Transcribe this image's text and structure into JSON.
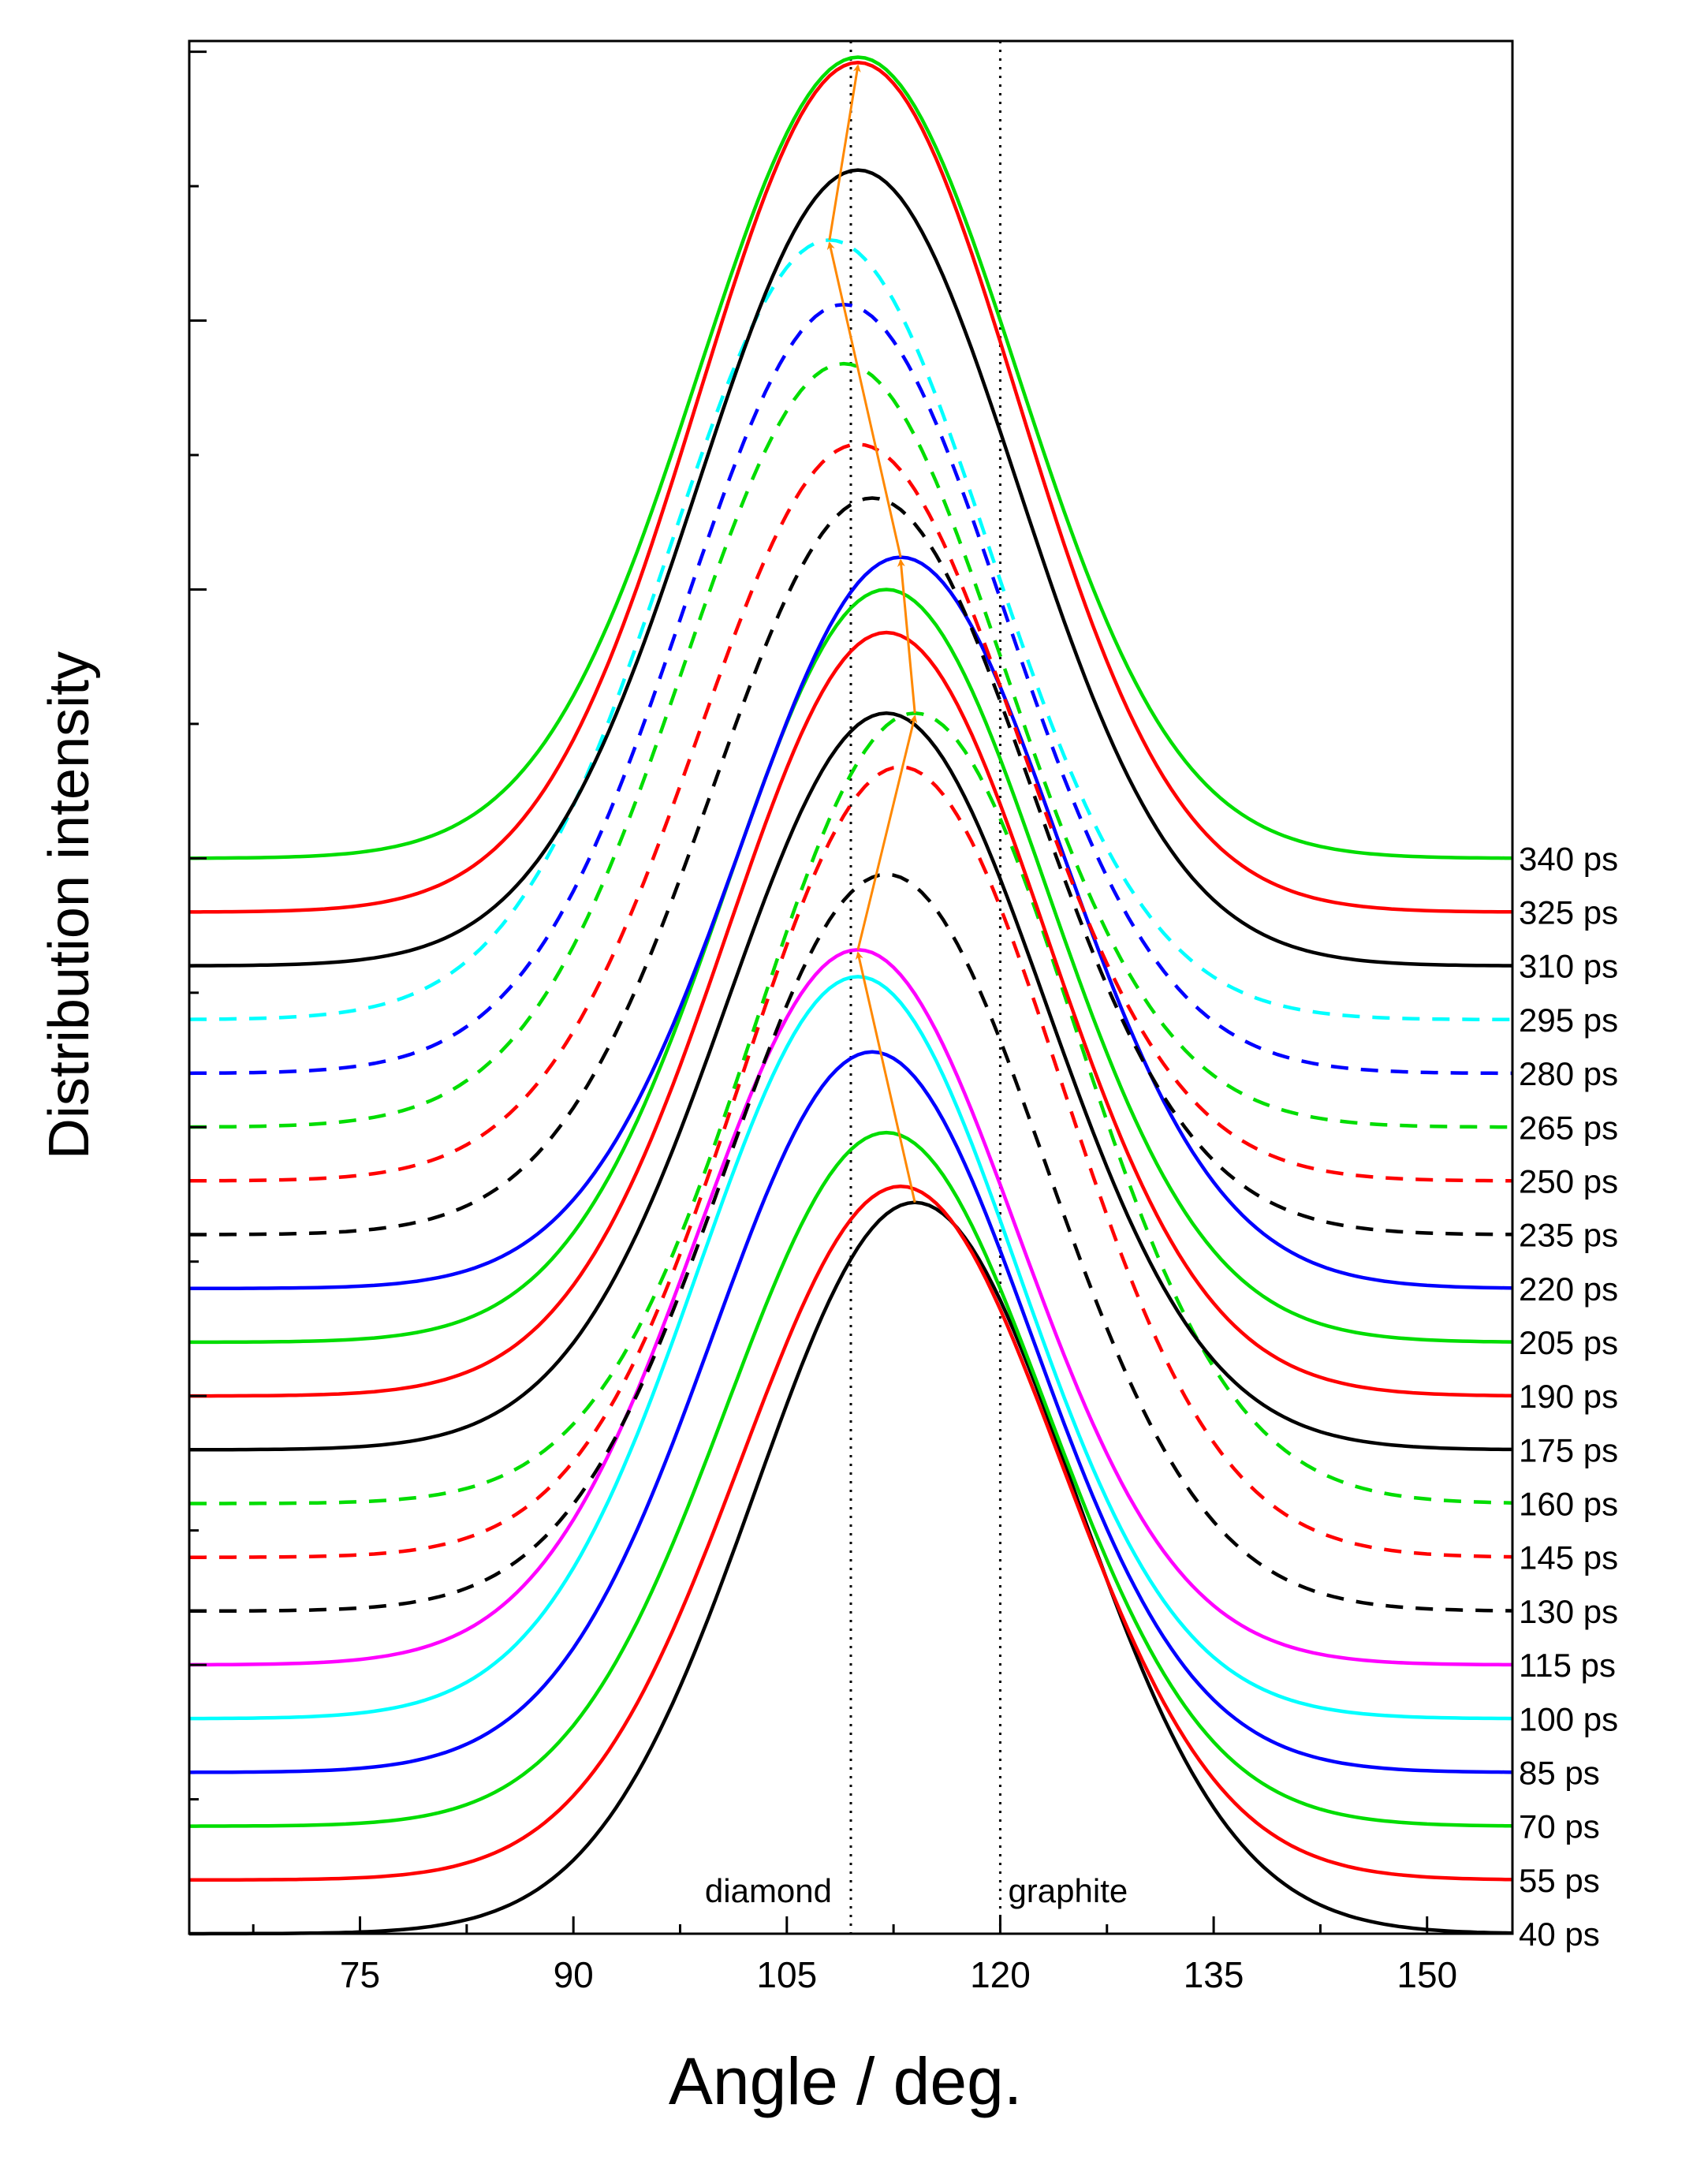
{
  "chart_data": {
    "type": "line",
    "title": "",
    "xlabel": "Angle / deg.",
    "ylabel": "Distribution intensity",
    "xlim": [
      63,
      156
    ],
    "x_ticks": [
      75,
      90,
      105,
      120,
      135,
      150
    ],
    "reference_lines": [
      {
        "x": 109.5,
        "label": "diamond",
        "style": "dotted"
      },
      {
        "x": 120,
        "label": "graphite",
        "style": "dotted"
      }
    ],
    "series": [
      {
        "name": "40 ps",
        "color": "#000000",
        "dash": false,
        "peak_x": 114,
        "baseline": 0.0,
        "peak_height": 13.6
      },
      {
        "name": "55 ps",
        "color": "#ff0000",
        "dash": false,
        "peak_x": 113,
        "baseline": 1.0,
        "peak_height": 12.9
      },
      {
        "name": "70 ps",
        "color": "#00dd00",
        "dash": false,
        "peak_x": 112,
        "baseline": 2.0,
        "peak_height": 12.9
      },
      {
        "name": "85 ps",
        "color": "#0000ff",
        "dash": false,
        "peak_x": 111,
        "baseline": 3.0,
        "peak_height": 13.4
      },
      {
        "name": "100 ps",
        "color": "#00ffff",
        "dash": false,
        "peak_x": 110,
        "baseline": 4.0,
        "peak_height": 13.8
      },
      {
        "name": "115 ps",
        "color": "#ff00ff",
        "dash": false,
        "peak_x": 110,
        "baseline": 5.0,
        "peak_height": 13.3
      },
      {
        "name": "130 ps",
        "color": "#000000",
        "dash": true,
        "peak_x": 112,
        "baseline": 6.0,
        "peak_height": 13.7
      },
      {
        "name": "145 ps",
        "color": "#ff0000",
        "dash": true,
        "peak_x": 113,
        "baseline": 7.0,
        "peak_height": 14.7
      },
      {
        "name": "160 ps",
        "color": "#00dd00",
        "dash": true,
        "peak_x": 114,
        "baseline": 8.0,
        "peak_height": 14.7
      },
      {
        "name": "175 ps",
        "color": "#000000",
        "dash": false,
        "peak_x": 112,
        "baseline": 9.0,
        "peak_height": 13.7
      },
      {
        "name": "190 ps",
        "color": "#ff0000",
        "dash": false,
        "peak_x": 112,
        "baseline": 10.0,
        "peak_height": 14.2
      },
      {
        "name": "205 ps",
        "color": "#00dd00",
        "dash": false,
        "peak_x": 112,
        "baseline": 11.0,
        "peak_height": 14.0
      },
      {
        "name": "220 ps",
        "color": "#0000ff",
        "dash": false,
        "peak_x": 113,
        "baseline": 12.0,
        "peak_height": 13.6
      },
      {
        "name": "235 ps",
        "color": "#000000",
        "dash": true,
        "peak_x": 111,
        "baseline": 13.0,
        "peak_height": 13.7
      },
      {
        "name": "250 ps",
        "color": "#ff0000",
        "dash": true,
        "peak_x": 110,
        "baseline": 14.0,
        "peak_height": 13.7
      },
      {
        "name": "265 ps",
        "color": "#00dd00",
        "dash": true,
        "peak_x": 109,
        "baseline": 15.0,
        "peak_height": 14.2
      },
      {
        "name": "280 ps",
        "color": "#0000ff",
        "dash": true,
        "peak_x": 109,
        "baseline": 16.0,
        "peak_height": 14.3
      },
      {
        "name": "295 ps",
        "color": "#00ffff",
        "dash": true,
        "peak_x": 108,
        "baseline": 17.0,
        "peak_height": 14.5
      },
      {
        "name": "310 ps",
        "color": "#000000",
        "dash": false,
        "peak_x": 110,
        "baseline": 18.0,
        "peak_height": 14.8
      },
      {
        "name": "325 ps",
        "color": "#ff0000",
        "dash": false,
        "peak_x": 110,
        "baseline": 19.0,
        "peak_height": 15.8
      },
      {
        "name": "340 ps",
        "color": "#00dd00",
        "dash": false,
        "peak_x": 110,
        "baseline": 20.0,
        "peak_height": 14.9
      }
    ],
    "peak_shift_arrows": [
      {
        "from_series": "40 ps",
        "to_series": "115 ps"
      },
      {
        "from_series": "115 ps",
        "to_series": "160 ps"
      },
      {
        "from_series": "160 ps",
        "to_series": "220 ps"
      },
      {
        "from_series": "220 ps",
        "to_series": "295 ps"
      },
      {
        "from_series": "295 ps",
        "to_series": "325 ps"
      }
    ],
    "arrow_color": "#ff8800"
  }
}
